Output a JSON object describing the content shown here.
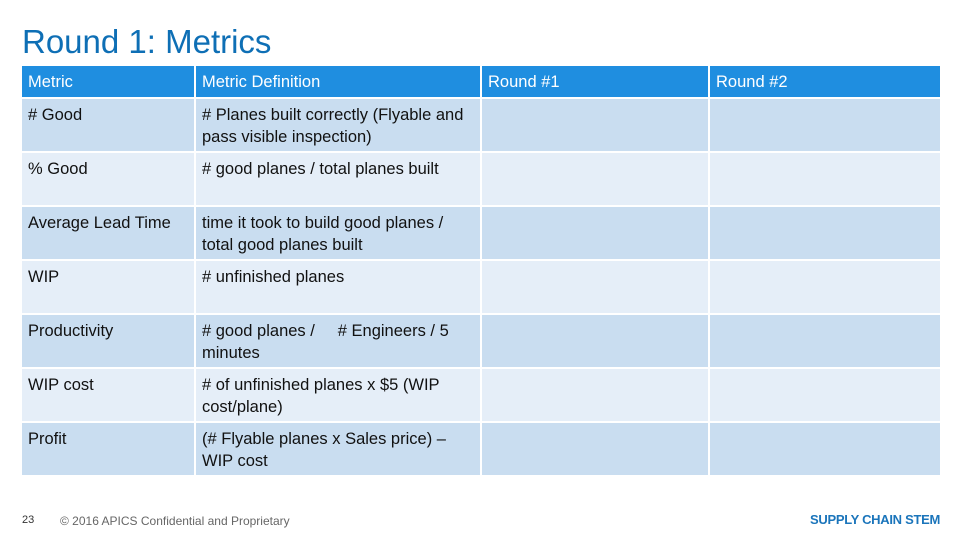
{
  "title": "Round 1: Metrics",
  "table": {
    "headers": [
      "Metric",
      "Metric Definition",
      "Round #1",
      "Round #2"
    ],
    "rows": [
      {
        "metric": "# Good",
        "definition": "# Planes built correctly (Flyable and pass visible inspection)",
        "round1": "",
        "round2": ""
      },
      {
        "metric": "% Good",
        "definition": "# good planes / total planes built",
        "round1": "",
        "round2": ""
      },
      {
        "metric": "Average Lead Time",
        "definition": "time it took to build good planes / total good planes built",
        "round1": "",
        "round2": ""
      },
      {
        "metric": "WIP",
        "definition": "# unfinished planes",
        "round1": "",
        "round2": ""
      },
      {
        "metric": "Productivity",
        "definition": "# good planes /     # Engineers / 5 minutes",
        "round1": "",
        "round2": ""
      },
      {
        "metric": "WIP cost",
        "definition": "# of unfinished planes x $5 (WIP cost/plane)",
        "round1": "",
        "round2": ""
      },
      {
        "metric": "Profit",
        "definition": "(# Flyable planes x Sales price) – WIP cost",
        "round1": "",
        "round2": ""
      }
    ]
  },
  "footer": {
    "page_number": "23",
    "copyright": "© 2016 APICS Confidential and Proprietary",
    "logo_text": "SUPPLY CHAIN STEM"
  },
  "colors": {
    "title": "#0e6fb5",
    "header_bg": "#1f8ee0",
    "row_odd": "#c9ddf0",
    "row_even": "#e5eef8",
    "logo": "#1b75bb"
  }
}
